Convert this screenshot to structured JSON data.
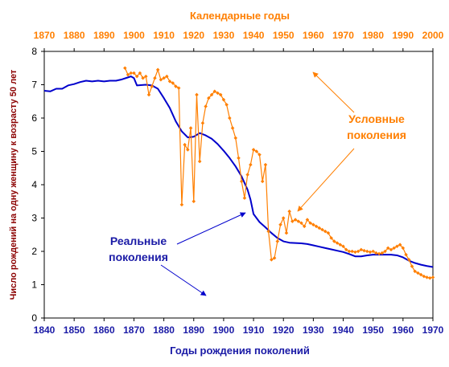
{
  "chart_data": {
    "type": "line",
    "title": "",
    "xlabel": "Годы рождения поколений",
    "x2label": "Календарные годы",
    "ylabel": "Число рождений на одну женщину к возрасту 50 лет",
    "xlim": [
      1840,
      1970
    ],
    "x2lim": [
      1870,
      2000
    ],
    "ylim": [
      0,
      8
    ],
    "x_ticks": [
      "1840",
      "1850",
      "1860",
      "1870",
      "1880",
      "1890",
      "1900",
      "1910",
      "1920",
      "1930",
      "1940",
      "1950",
      "1960",
      "1970"
    ],
    "x2_ticks": [
      "1870",
      "1880",
      "1890",
      "1900",
      "1910",
      "1920",
      "1930",
      "1940",
      "1950",
      "1960",
      "1970",
      "1980",
      "1990",
      "2000"
    ],
    "y_ticks": [
      "0",
      "1",
      "2",
      "3",
      "4",
      "5",
      "6",
      "7",
      "8"
    ],
    "grid": false,
    "colors": {
      "real": "#0000cc",
      "conditional": "#ff7f00",
      "bottom_axis": "#1a1aa6",
      "top_axis": "#ff7f00",
      "ylabel": "#8b0000"
    },
    "annotations": {
      "conditional": [
        "Условные",
        "поколения"
      ],
      "real": [
        "Реальные",
        "поколения"
      ]
    },
    "series": [
      {
        "key": "real",
        "axis": "bottom",
        "points": [
          [
            1840,
            6.82
          ],
          [
            1842,
            6.8
          ],
          [
            1844,
            6.88
          ],
          [
            1846,
            6.88
          ],
          [
            1848,
            6.98
          ],
          [
            1850,
            7.02
          ],
          [
            1852,
            7.08
          ],
          [
            1854,
            7.12
          ],
          [
            1856,
            7.1
          ],
          [
            1858,
            7.12
          ],
          [
            1860,
            7.1
          ],
          [
            1862,
            7.12
          ],
          [
            1864,
            7.12
          ],
          [
            1866,
            7.16
          ],
          [
            1868,
            7.22
          ],
          [
            1869,
            7.25
          ],
          [
            1870,
            7.2
          ],
          [
            1871,
            6.98
          ],
          [
            1874,
            7.0
          ],
          [
            1876,
            6.98
          ],
          [
            1878,
            6.88
          ],
          [
            1880,
            6.6
          ],
          [
            1882,
            6.3
          ],
          [
            1884,
            5.9
          ],
          [
            1886,
            5.6
          ],
          [
            1888,
            5.42
          ],
          [
            1890,
            5.44
          ],
          [
            1892,
            5.55
          ],
          [
            1894,
            5.48
          ],
          [
            1896,
            5.38
          ],
          [
            1898,
            5.22
          ],
          [
            1900,
            5.02
          ],
          [
            1902,
            4.8
          ],
          [
            1904,
            4.55
          ],
          [
            1906,
            4.25
          ],
          [
            1908,
            3.85
          ],
          [
            1909,
            3.55
          ],
          [
            1910,
            3.12
          ],
          [
            1912,
            2.88
          ],
          [
            1914,
            2.72
          ],
          [
            1916,
            2.55
          ],
          [
            1918,
            2.4
          ],
          [
            1920,
            2.3
          ],
          [
            1922,
            2.26
          ],
          [
            1924,
            2.25
          ],
          [
            1926,
            2.24
          ],
          [
            1928,
            2.22
          ],
          [
            1930,
            2.18
          ],
          [
            1932,
            2.14
          ],
          [
            1934,
            2.1
          ],
          [
            1936,
            2.06
          ],
          [
            1938,
            2.02
          ],
          [
            1940,
            1.98
          ],
          [
            1942,
            1.92
          ],
          [
            1944,
            1.85
          ],
          [
            1946,
            1.85
          ],
          [
            1948,
            1.88
          ],
          [
            1950,
            1.9
          ],
          [
            1952,
            1.9
          ],
          [
            1954,
            1.9
          ],
          [
            1956,
            1.9
          ],
          [
            1958,
            1.88
          ],
          [
            1960,
            1.82
          ],
          [
            1962,
            1.72
          ],
          [
            1964,
            1.65
          ],
          [
            1966,
            1.6
          ],
          [
            1968,
            1.56
          ],
          [
            1970,
            1.53
          ]
        ]
      },
      {
        "key": "conditional",
        "axis": "top",
        "points": [
          [
            1897,
            7.5
          ],
          [
            1898,
            7.3
          ],
          [
            1899,
            7.35
          ],
          [
            1900,
            7.35
          ],
          [
            1901,
            7.25
          ],
          [
            1902,
            7.35
          ],
          [
            1903,
            7.2
          ],
          [
            1904,
            7.25
          ],
          [
            1905,
            6.7
          ],
          [
            1906,
            6.95
          ],
          [
            1907,
            7.2
          ],
          [
            1908,
            7.45
          ],
          [
            1909,
            7.15
          ],
          [
            1910,
            7.2
          ],
          [
            1911,
            7.25
          ],
          [
            1912,
            7.1
          ],
          [
            1913,
            7.05
          ],
          [
            1914,
            6.95
          ],
          [
            1915,
            6.9
          ],
          [
            1916,
            3.4
          ],
          [
            1917,
            5.2
          ],
          [
            1918,
            5.05
          ],
          [
            1919,
            5.7
          ],
          [
            1920,
            3.5
          ],
          [
            1921,
            6.7
          ],
          [
            1922,
            4.7
          ],
          [
            1923,
            5.85
          ],
          [
            1924,
            6.35
          ],
          [
            1925,
            6.6
          ],
          [
            1926,
            6.7
          ],
          [
            1927,
            6.8
          ],
          [
            1928,
            6.75
          ],
          [
            1929,
            6.7
          ],
          [
            1930,
            6.55
          ],
          [
            1931,
            6.4
          ],
          [
            1932,
            6.0
          ],
          [
            1933,
            5.7
          ],
          [
            1934,
            5.4
          ],
          [
            1935,
            4.8
          ],
          [
            1936,
            4.1
          ],
          [
            1937,
            3.6
          ],
          [
            1938,
            4.3
          ],
          [
            1939,
            4.6
          ],
          [
            1940,
            5.05
          ],
          [
            1941,
            5.0
          ],
          [
            1942,
            4.9
          ],
          [
            1943,
            4.1
          ],
          [
            1944,
            4.6
          ],
          [
            1945,
            2.6
          ],
          [
            1946,
            1.75
          ],
          [
            1947,
            1.8
          ],
          [
            1948,
            2.3
          ],
          [
            1949,
            2.8
          ],
          [
            1950,
            3.0
          ],
          [
            1951,
            2.55
          ],
          [
            1952,
            3.2
          ],
          [
            1953,
            2.9
          ],
          [
            1954,
            2.95
          ],
          [
            1955,
            2.9
          ],
          [
            1956,
            2.85
          ],
          [
            1957,
            2.75
          ],
          [
            1958,
            2.95
          ],
          [
            1959,
            2.85
          ],
          [
            1960,
            2.8
          ],
          [
            1961,
            2.75
          ],
          [
            1962,
            2.7
          ],
          [
            1963,
            2.65
          ],
          [
            1964,
            2.6
          ],
          [
            1965,
            2.55
          ],
          [
            1966,
            2.4
          ],
          [
            1967,
            2.3
          ],
          [
            1968,
            2.25
          ],
          [
            1969,
            2.2
          ],
          [
            1970,
            2.15
          ],
          [
            1971,
            2.05
          ],
          [
            1972,
            2.0
          ],
          [
            1973,
            2.0
          ],
          [
            1974,
            1.98
          ],
          [
            1975,
            2.0
          ],
          [
            1976,
            2.05
          ],
          [
            1977,
            2.02
          ],
          [
            1978,
            2.0
          ],
          [
            1979,
            1.98
          ],
          [
            1980,
            2.0
          ],
          [
            1981,
            1.95
          ],
          [
            1982,
            1.93
          ],
          [
            1983,
            1.95
          ],
          [
            1984,
            2.0
          ],
          [
            1985,
            2.1
          ],
          [
            1986,
            2.05
          ],
          [
            1987,
            2.1
          ],
          [
            1988,
            2.15
          ],
          [
            1989,
            2.2
          ],
          [
            1990,
            2.1
          ],
          [
            1991,
            1.9
          ],
          [
            1992,
            1.75
          ],
          [
            1993,
            1.55
          ],
          [
            1994,
            1.4
          ],
          [
            1995,
            1.35
          ],
          [
            1996,
            1.3
          ],
          [
            1997,
            1.25
          ],
          [
            1998,
            1.22
          ],
          [
            1999,
            1.2
          ],
          [
            2000,
            1.22
          ]
        ]
      }
    ]
  }
}
